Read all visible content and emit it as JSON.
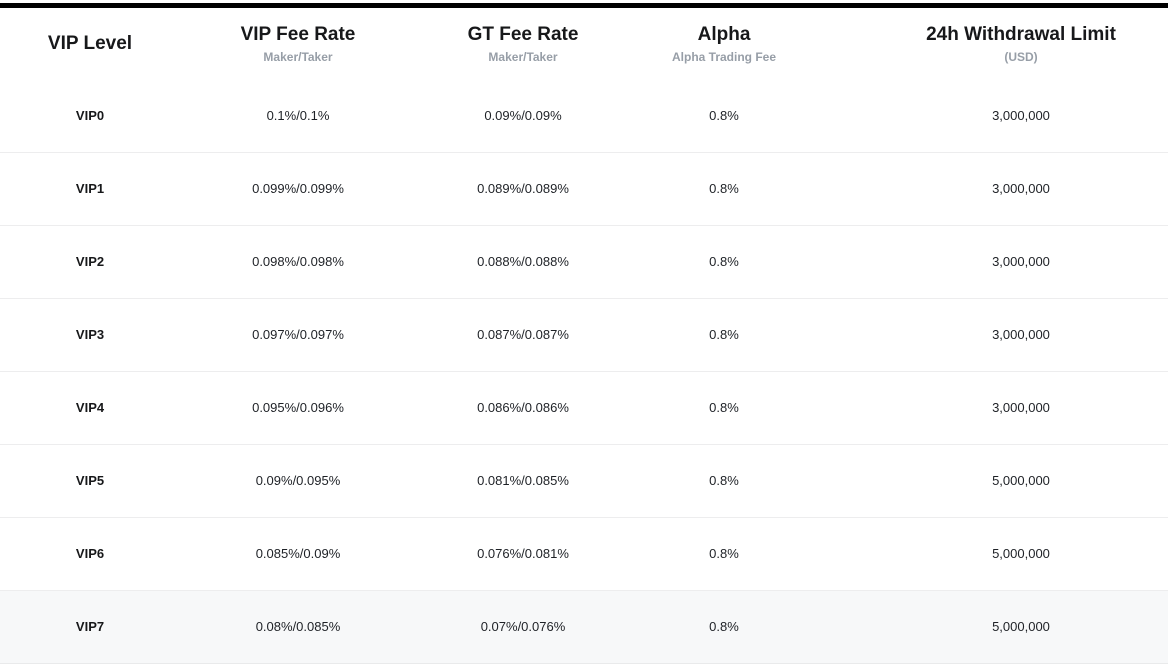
{
  "page": {
    "top_border_color": "#000000",
    "highlight_row_color": "#f7f8f9",
    "subheader_text_color": "#979ea7"
  },
  "table": {
    "columns": [
      {
        "id": "level",
        "label": "VIP Level",
        "sublabel": ""
      },
      {
        "id": "vip_fee",
        "label": "VIP Fee Rate",
        "sublabel": "Maker/Taker"
      },
      {
        "id": "gt_fee",
        "label": "GT Fee Rate",
        "sublabel": "Maker/Taker"
      },
      {
        "id": "alpha",
        "label": "Alpha",
        "sublabel": "Alpha Trading Fee"
      },
      {
        "id": "withdrawal",
        "label": "24h Withdrawal Limit",
        "sublabel": "(USD)"
      }
    ],
    "rows": [
      {
        "level": "VIP0",
        "vip_fee": "0.1%/0.1%",
        "gt_fee": "0.09%/0.09%",
        "alpha": "0.8%",
        "withdrawal": "3,000,000",
        "highlighted": false
      },
      {
        "level": "VIP1",
        "vip_fee": "0.099%/0.099%",
        "gt_fee": "0.089%/0.089%",
        "alpha": "0.8%",
        "withdrawal": "3,000,000",
        "highlighted": false
      },
      {
        "level": "VIP2",
        "vip_fee": "0.098%/0.098%",
        "gt_fee": "0.088%/0.088%",
        "alpha": "0.8%",
        "withdrawal": "3,000,000",
        "highlighted": false
      },
      {
        "level": "VIP3",
        "vip_fee": "0.097%/0.097%",
        "gt_fee": "0.087%/0.087%",
        "alpha": "0.8%",
        "withdrawal": "3,000,000",
        "highlighted": false
      },
      {
        "level": "VIP4",
        "vip_fee": "0.095%/0.096%",
        "gt_fee": "0.086%/0.086%",
        "alpha": "0.8%",
        "withdrawal": "3,000,000",
        "highlighted": false
      },
      {
        "level": "VIP5",
        "vip_fee": "0.09%/0.095%",
        "gt_fee": "0.081%/0.085%",
        "alpha": "0.8%",
        "withdrawal": "5,000,000",
        "highlighted": false
      },
      {
        "level": "VIP6",
        "vip_fee": "0.085%/0.09%",
        "gt_fee": "0.076%/0.081%",
        "alpha": "0.8%",
        "withdrawal": "5,000,000",
        "highlighted": false
      },
      {
        "level": "VIP7",
        "vip_fee": "0.08%/0.085%",
        "gt_fee": "0.07%/0.076%",
        "alpha": "0.8%",
        "withdrawal": "5,000,000",
        "highlighted": true
      }
    ]
  }
}
